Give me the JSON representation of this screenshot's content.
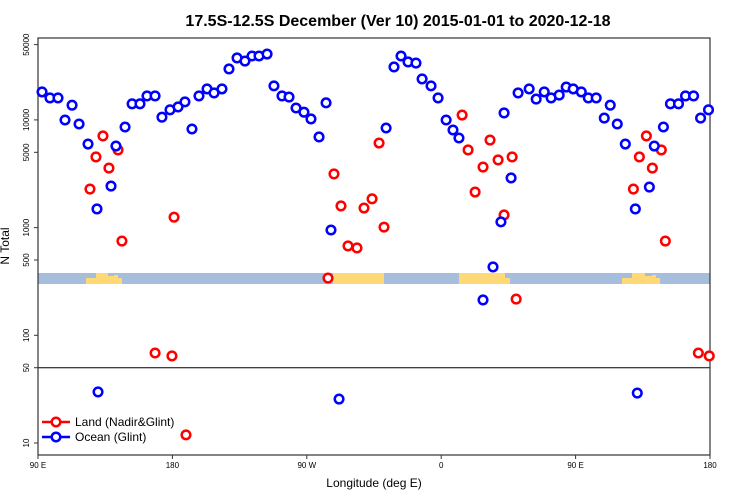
{
  "chart_data": {
    "type": "scatter",
    "title": "17.5S-12.5S December (Ver 10)   2015-01-01 to 2020-12-18",
    "xlabel": "Longitude (deg E)",
    "ylabel": "N Total",
    "yscale": "log",
    "xlim": [
      90,
      540
    ],
    "ylim": [
      9,
      55000
    ],
    "x_note": "longitude unwrapped: 90E..180..90W(270)..0(360)..90E(450)..180(540)",
    "x_ticks": [
      {
        "value": 90,
        "label": "90 E"
      },
      {
        "value": 180,
        "label": "180"
      },
      {
        "value": 270,
        "label": "90 W"
      },
      {
        "value": 360,
        "label": "0"
      },
      {
        "value": 450,
        "label": "90 E"
      },
      {
        "value": 540,
        "label": "180"
      }
    ],
    "y_ticks": [
      {
        "value": 10,
        "label": "10"
      },
      {
        "value": 50,
        "label": "50"
      },
      {
        "value": 100,
        "label": "100"
      },
      {
        "value": 500,
        "label": "500"
      },
      {
        "value": 1000,
        "label": "1000"
      },
      {
        "value": 5000,
        "label": "5000"
      },
      {
        "value": 10000,
        "label": "10000"
      },
      {
        "value": 50000,
        "label": "50000"
      }
    ],
    "reference_line": 50,
    "legend_position": "bottom-left",
    "series": [
      {
        "name": "Land (Nadir&Glint)",
        "color": "#ff0000",
        "points": [
          [
            124.8,
            2280
          ],
          [
            128.8,
            4530
          ],
          [
            133.5,
            7090
          ],
          [
            137.5,
            3570
          ],
          [
            143.6,
            5260
          ],
          [
            146.2,
            750
          ],
          [
            168.4,
            68.5
          ],
          [
            179.7,
            64.3
          ],
          [
            181.1,
            1250
          ],
          [
            189.1,
            11.9
          ],
          [
            284.2,
            340
          ],
          [
            288.2,
            3150
          ],
          [
            292.9,
            1590
          ],
          [
            297.6,
            675
          ],
          [
            303.6,
            647
          ],
          [
            308.3,
            1520
          ],
          [
            313.7,
            1850
          ],
          [
            318.4,
            6100
          ],
          [
            321.7,
            1010
          ],
          [
            374,
            11100
          ],
          [
            378,
            5260
          ],
          [
            382.7,
            2140
          ],
          [
            388,
            3650
          ],
          [
            392.7,
            6500
          ],
          [
            398.1,
            4250
          ],
          [
            402.1,
            1310
          ],
          [
            407.5,
            4530
          ],
          [
            410.2,
            217
          ],
          [
            488.7,
            2280
          ],
          [
            492.7,
            4530
          ],
          [
            497.4,
            7090
          ],
          [
            501.4,
            3570
          ],
          [
            507.4,
            5260
          ],
          [
            510.1,
            750
          ],
          [
            532.2,
            68.5
          ],
          [
            539.5,
            64.3
          ]
        ]
      },
      {
        "name": "Ocean (Glint)",
        "color": "#0000ff",
        "points": [
          [
            92.7,
            18200
          ],
          [
            98,
            16000
          ],
          [
            103.4,
            16000
          ],
          [
            108.1,
            9980
          ],
          [
            112.8,
            13700
          ],
          [
            117.5,
            9160
          ],
          [
            123.5,
            5970
          ],
          [
            129.5,
            1490
          ],
          [
            130.2,
            29.8
          ],
          [
            138.9,
            2430
          ],
          [
            142.2,
            5720
          ],
          [
            148.3,
            8590
          ],
          [
            153,
            14100
          ],
          [
            158.3,
            14100
          ],
          [
            163,
            16700
          ],
          [
            168.4,
            16700
          ],
          [
            173,
            10600
          ],
          [
            178.4,
            12400
          ],
          [
            183.8,
            13200
          ],
          [
            188.4,
            14700
          ],
          [
            193.1,
            8230
          ],
          [
            197.8,
            16700
          ],
          [
            203.2,
            19400
          ],
          [
            207.9,
            17800
          ],
          [
            213.2,
            19400
          ],
          [
            217.9,
            29700
          ],
          [
            223.3,
            37600
          ],
          [
            228.6,
            35200
          ],
          [
            233.3,
            39200
          ],
          [
            238,
            39200
          ],
          [
            243.4,
            40900
          ],
          [
            248,
            20700
          ],
          [
            253.4,
            16700
          ],
          [
            258.1,
            16300
          ],
          [
            262.8,
            12900
          ],
          [
            268.1,
            11800
          ],
          [
            272.8,
            10200
          ],
          [
            278.2,
            6940
          ],
          [
            282.9,
            14400
          ],
          [
            286.2,
            950
          ],
          [
            291.6,
            25.6
          ],
          [
            323.1,
            8410
          ],
          [
            328.4,
            31000
          ],
          [
            333.1,
            39200
          ],
          [
            337.8,
            34500
          ],
          [
            343.1,
            33700
          ],
          [
            347.2,
            24000
          ],
          [
            353.2,
            20700
          ],
          [
            357.9,
            16000
          ],
          [
            363.3,
            9980
          ],
          [
            367.9,
            8060
          ],
          [
            371.9,
            6790
          ],
          [
            388,
            213
          ],
          [
            394.7,
            431
          ],
          [
            400,
            1130
          ],
          [
            402.1,
            11600
          ],
          [
            406.8,
            2890
          ],
          [
            411.5,
            17800
          ],
          [
            418.9,
            19400
          ],
          [
            423.6,
            15600
          ],
          [
            429,
            18200
          ],
          [
            433.6,
            16000
          ],
          [
            439,
            17000
          ],
          [
            443.7,
            20200
          ],
          [
            448.4,
            19400
          ],
          [
            453.8,
            18200
          ],
          [
            458.5,
            16000
          ],
          [
            463.8,
            16000
          ],
          [
            469.2,
            10400
          ],
          [
            473.2,
            13700
          ],
          [
            477.9,
            9160
          ],
          [
            483.3,
            5970
          ],
          [
            490,
            1490
          ],
          [
            491.3,
            29.1
          ],
          [
            499.4,
            2380
          ],
          [
            502.7,
            5720
          ],
          [
            508.8,
            8590
          ],
          [
            513.5,
            14100
          ],
          [
            518.9,
            14100
          ],
          [
            523.6,
            16700
          ],
          [
            529,
            16700
          ],
          [
            533.7,
            10400
          ],
          [
            539,
            12400
          ]
        ]
      }
    ],
    "map_strip_colors": {
      "ocean": "#a6bddb",
      "land": "#fed976"
    }
  }
}
